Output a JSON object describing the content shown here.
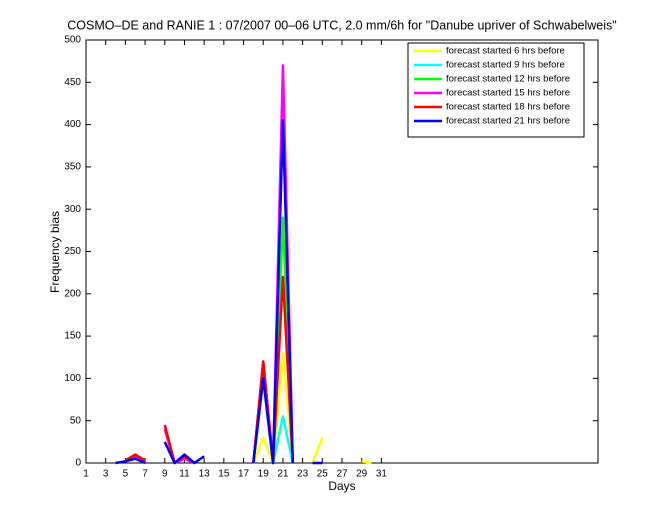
{
  "chart_data": {
    "type": "line",
    "title": "COSMO–DE and RANIE 1 : 07/2007 00–06 UTC, 2.0 mm/6h for \"Danube upriver of Schwabelweis\"",
    "xlabel": "Days",
    "ylabel": "Frequency bias",
    "x": [
      1,
      2,
      3,
      4,
      5,
      6,
      7,
      8,
      9,
      10,
      11,
      12,
      13,
      14,
      15,
      16,
      17,
      18,
      19,
      20,
      21,
      22,
      23,
      24,
      25,
      26,
      27,
      28,
      29,
      30,
      31
    ],
    "xlim": [
      1,
      53
    ],
    "xticks": [
      1,
      3,
      5,
      7,
      9,
      11,
      13,
      15,
      17,
      19,
      21,
      23,
      25,
      27,
      29,
      31
    ],
    "ylim": [
      0,
      500
    ],
    "yticks": [
      0,
      50,
      100,
      150,
      200,
      250,
      300,
      350,
      400,
      450,
      500
    ],
    "legend": "northeast",
    "series": [
      {
        "name": "forecast started 6 hrs before",
        "color": "#ffff00",
        "values": [
          null,
          null,
          null,
          null,
          null,
          null,
          null,
          null,
          null,
          null,
          null,
          null,
          null,
          null,
          null,
          null,
          null,
          0,
          30,
          0,
          130,
          0,
          null,
          0,
          30,
          null,
          null,
          null,
          2,
          0,
          null
        ]
      },
      {
        "name": "forecast started 9 hrs before",
        "color": "#00ffff",
        "values": [
          null,
          null,
          null,
          null,
          null,
          null,
          null,
          null,
          null,
          null,
          null,
          null,
          null,
          null,
          null,
          null,
          null,
          0,
          110,
          0,
          55,
          0,
          null,
          null,
          null,
          null,
          null,
          null,
          null,
          null,
          null
        ]
      },
      {
        "name": "forecast started 12 hrs before",
        "color": "#00ff00",
        "values": [
          null,
          null,
          null,
          null,
          null,
          null,
          null,
          null,
          null,
          null,
          null,
          null,
          null,
          null,
          null,
          null,
          null,
          0,
          115,
          0,
          290,
          0,
          null,
          null,
          null,
          null,
          null,
          null,
          null,
          null,
          null
        ]
      },
      {
        "name": "forecast started 15 hrs before",
        "color": "#ff00ff",
        "values": [
          null,
          null,
          null,
          null,
          2,
          8,
          2,
          null,
          40,
          0,
          5,
          0,
          null,
          null,
          null,
          null,
          null,
          0,
          120,
          0,
          470,
          0,
          null,
          null,
          null,
          null,
          null,
          null,
          null,
          null,
          null
        ]
      },
      {
        "name": "forecast started 18 hrs before",
        "color": "#ff0000",
        "values": [
          null,
          null,
          null,
          null,
          3,
          10,
          3,
          null,
          45,
          0,
          8,
          0,
          null,
          null,
          null,
          null,
          null,
          0,
          120,
          0,
          220,
          0,
          null,
          null,
          null,
          null,
          null,
          null,
          null,
          null,
          null
        ]
      },
      {
        "name": "forecast started 21 hrs before",
        "color": "#0000ff",
        "values": [
          null,
          0,
          null,
          0,
          2,
          5,
          0,
          null,
          25,
          0,
          10,
          0,
          8,
          null,
          null,
          null,
          null,
          0,
          100,
          0,
          405,
          0,
          null,
          0,
          0,
          null,
          null,
          null,
          null,
          null,
          null
        ]
      }
    ]
  }
}
